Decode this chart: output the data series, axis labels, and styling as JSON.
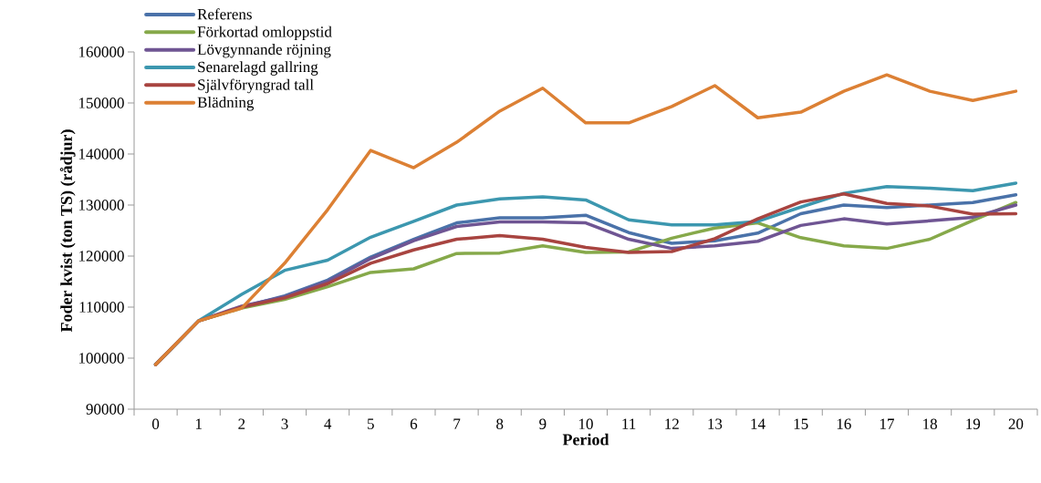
{
  "chart_data": {
    "type": "line",
    "xlabel": "Period",
    "ylabel": "Foder kvist (ton TS) (rådjur)",
    "categories": [
      "0",
      "1",
      "2",
      "3",
      "4",
      "5",
      "6",
      "7",
      "8",
      "9",
      "10",
      "11",
      "12",
      "13",
      "14",
      "15",
      "16",
      "17",
      "18",
      "19",
      "20"
    ],
    "ylim": [
      90000,
      160000
    ],
    "yticks": [
      90000,
      100000,
      110000,
      120000,
      130000,
      140000,
      150000,
      160000
    ],
    "grid": false,
    "legend": "top left",
    "marker": "none",
    "line_style": "solid",
    "series": [
      {
        "name": "Referens",
        "color": "#4a72a9",
        "values": [
          98750,
          107300,
          110000,
          112200,
          115300,
          119800,
          123300,
          126500,
          127500,
          127500,
          128000,
          124600,
          122500,
          123000,
          124500,
          128300,
          130000,
          129500,
          130000,
          130500,
          132000
        ]
      },
      {
        "name": "Förkortad omloppstid",
        "color": "#86a94a",
        "values": [
          98750,
          107300,
          109800,
          111500,
          114000,
          116800,
          117500,
          120500,
          120600,
          122000,
          120700,
          120800,
          123500,
          125500,
          126500,
          123600,
          122000,
          121500,
          123300,
          127000,
          130500
        ]
      },
      {
        "name": "Lövgynnande röjning",
        "color": "#6f5593",
        "values": [
          98750,
          107300,
          110200,
          112000,
          115000,
          119500,
          123000,
          125800,
          126700,
          126700,
          126500,
          123300,
          121500,
          122000,
          122900,
          126000,
          127300,
          126300,
          126900,
          127600,
          130000
        ]
      },
      {
        "name": "Senarelagd gallring",
        "color": "#3c97af",
        "values": [
          98750,
          107300,
          112500,
          117200,
          119200,
          123700,
          126800,
          130000,
          131200,
          131600,
          131000,
          127100,
          126100,
          126100,
          126800,
          129600,
          132300,
          133600,
          133300,
          132800,
          134300
        ]
      },
      {
        "name": "Självföryngrad tall",
        "color": "#a84440",
        "values": [
          98750,
          107300,
          110000,
          111800,
          114600,
          118600,
          121200,
          123300,
          124000,
          123300,
          121700,
          120700,
          120900,
          123400,
          127300,
          130600,
          132200,
          130300,
          129800,
          128200,
          128300
        ]
      },
      {
        "name": "Blädning",
        "color": "#dc8034",
        "values": [
          98750,
          107300,
          109800,
          118600,
          129100,
          140700,
          137300,
          142300,
          148400,
          152900,
          146100,
          146100,
          149300,
          153400,
          147100,
          148200,
          152300,
          155500,
          152300,
          150500,
          152300
        ]
      }
    ]
  }
}
